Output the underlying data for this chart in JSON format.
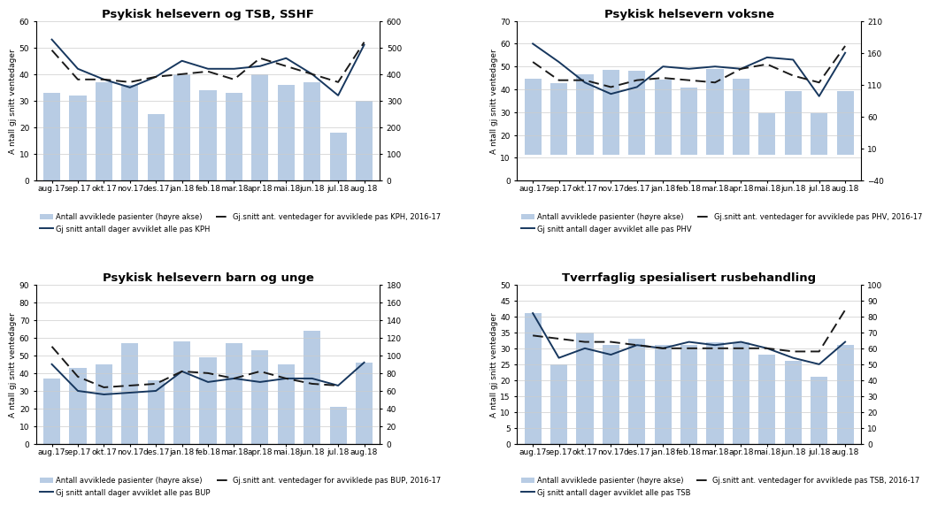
{
  "x_labels": [
    "aug.17",
    "sep.17",
    "okt.17",
    "nov.17",
    "des.17",
    "jan.18",
    "feb.18",
    "mar.18",
    "apr.18",
    "mai.18",
    "jun.18",
    "jul.18",
    "aug.18"
  ],
  "plot1": {
    "title": "Psykisk helsevern og TSB, SSHF",
    "bars": [
      330,
      320,
      370,
      360,
      250,
      400,
      340,
      330,
      400,
      360,
      370,
      180,
      300
    ],
    "line_solid": [
      53,
      42,
      38,
      35,
      39,
      45,
      42,
      42,
      43,
      46,
      40,
      32,
      51
    ],
    "line_dashed": [
      49,
      38,
      38,
      37,
      39,
      40,
      41,
      38,
      46,
      43,
      40,
      37,
      52
    ],
    "left_ylim": [
      0,
      60
    ],
    "right_ylim": [
      0,
      600
    ],
    "left_yticks": [
      0,
      10,
      20,
      30,
      40,
      50,
      60
    ],
    "right_yticks": [
      0,
      100,
      200,
      300,
      400,
      500,
      600
    ],
    "legend_bar": "Antall avviklede pasienter (høyre akse)",
    "legend_solid": "Gj snitt antall dager avviklet alle pas KPH",
    "legend_dashed": "Gj.snitt ant. ventedager for avviklede pas KPH, 2016-17",
    "ylabel": "A ntall gj snitt ventedager"
  },
  "plot2": {
    "title": "Psykisk helsevern voksne",
    "bars": [
      120,
      113,
      127,
      133,
      132,
      118,
      105,
      135,
      120,
      65,
      100,
      65,
      100
    ],
    "line_solid": [
      60,
      52,
      43,
      38,
      41,
      50,
      49,
      50,
      49,
      54,
      53,
      37,
      56
    ],
    "line_dashed": [
      52,
      44,
      44,
      41,
      44,
      45,
      44,
      43,
      49,
      51,
      46,
      43,
      59
    ],
    "left_ylim": [
      0,
      70
    ],
    "right_ylim": [
      -40,
      210
    ],
    "left_yticks": [
      0,
      10,
      20,
      30,
      40,
      50,
      60,
      70
    ],
    "right_yticks": [
      -40,
      10,
      60,
      110,
      160,
      210
    ],
    "legend_bar": "Antall avviklede pasienter (høyre akse)",
    "legend_solid": "Gj snitt antall dager avviklet alle pas PHV",
    "legend_dashed": "Gj.snitt ant. ventedager for avviklede pas PHV, 2016-17",
    "ylabel": "A ntall gj snitt ventedager"
  },
  "plot3": {
    "title": "Psykisk helsevern barn og unge",
    "bars": [
      74,
      86,
      90,
      114,
      72,
      116,
      98,
      114,
      106,
      90,
      128,
      42,
      92
    ],
    "line_solid": [
      45,
      30,
      28,
      29,
      30,
      41,
      35,
      37,
      35,
      37,
      37,
      33,
      46
    ],
    "line_dashed": [
      55,
      38,
      32,
      33,
      34,
      41,
      40,
      37,
      41,
      37,
      34,
      33,
      null
    ],
    "left_ylim": [
      0,
      90
    ],
    "right_ylim": [
      0,
      180
    ],
    "left_yticks": [
      0,
      10,
      20,
      30,
      40,
      50,
      60,
      70,
      80,
      90
    ],
    "right_yticks": [
      0,
      20,
      40,
      60,
      80,
      100,
      120,
      140,
      160,
      180
    ],
    "legend_bar": "Antall avviklede pasienter (høyre akse)",
    "legend_solid": "Gj snitt antall dager avviklet alle pas BUP",
    "legend_dashed": "Gj.snitt ant. ventedager for avviklede pas BUP, 2016-17",
    "ylabel": "A ntall gj snitt ventedager"
  },
  "plot4": {
    "title": "Tverrfaglig spesialisert rusbehandling",
    "bars": [
      82,
      50,
      70,
      62,
      66,
      62,
      62,
      64,
      64,
      56,
      52,
      42,
      62
    ],
    "line_solid": [
      41,
      27,
      30,
      28,
      31,
      30,
      32,
      31,
      32,
      30,
      27,
      25,
      32
    ],
    "line_dashed": [
      34,
      33,
      32,
      32,
      31,
      30,
      30,
      30,
      30,
      30,
      29,
      29,
      42
    ],
    "left_ylim": [
      0,
      50
    ],
    "right_ylim": [
      0,
      100
    ],
    "left_yticks": [
      0,
      5,
      10,
      15,
      20,
      25,
      30,
      35,
      40,
      45,
      50
    ],
    "right_yticks": [
      0,
      10,
      20,
      30,
      40,
      50,
      60,
      70,
      80,
      90,
      100
    ],
    "legend_bar": "Antall avviklede pasienter (høyre akse)",
    "legend_solid": "Gj snitt antall dager avviklet alle pas TSB",
    "legend_dashed": "Gj.snitt ant. ventedager for avviklede pas TSB, 2016-17",
    "ylabel": "A ntall gj snitt ventedager"
  },
  "bar_color": "#b8cce4",
  "line_solid_color": "#17375e",
  "line_dashed_color": "#1a1a1a",
  "background_color": "#ffffff",
  "title_fontsize": 9.5,
  "label_fontsize": 6.5,
  "legend_fontsize": 6.0,
  "tick_fontsize": 6.5
}
